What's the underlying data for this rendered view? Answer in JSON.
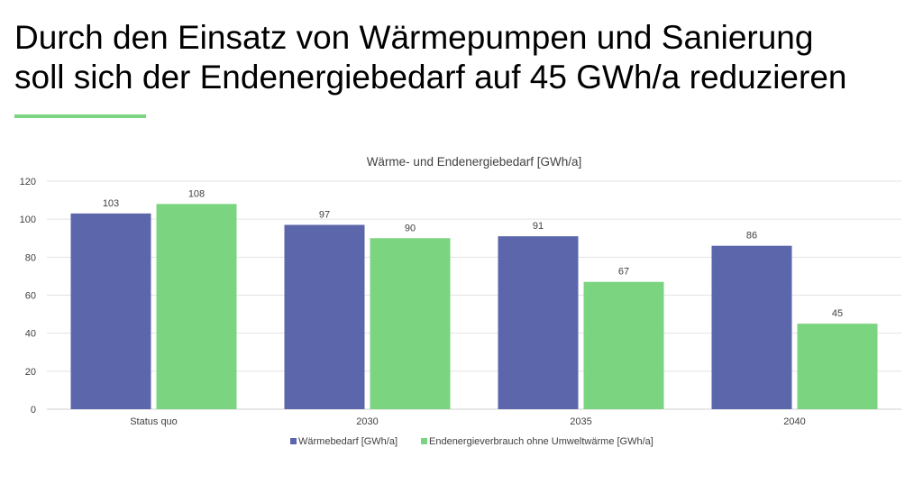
{
  "slide": {
    "title_line1": "Durch den Einsatz von Wärmepumpen und Sanierung",
    "title_line2": "soll sich der Endenergiebedarf auf 45 GWh/a reduzieren",
    "accent_color": "#7BD47F"
  },
  "chart_data": {
    "type": "bar",
    "title": "Wärme- und Endenergiebedarf [GWh/a]",
    "categories": [
      "Status quo",
      "2030",
      "2035",
      "2040"
    ],
    "series": [
      {
        "name": "Wärmebedarf [GWh/a]",
        "values": [
          103,
          97,
          91,
          86
        ],
        "color": "#5B66AB"
      },
      {
        "name": "Endenergieverbrauch ohne Umweltwärme [GWh/a]",
        "values": [
          108,
          90,
          67,
          45
        ],
        "color": "#7BD47F"
      }
    ],
    "ylim": [
      0,
      120
    ],
    "yticks": [
      0,
      20,
      40,
      60,
      80,
      100,
      120
    ],
    "grid": true,
    "legend": "bottom",
    "xlabel": "",
    "ylabel": ""
  }
}
